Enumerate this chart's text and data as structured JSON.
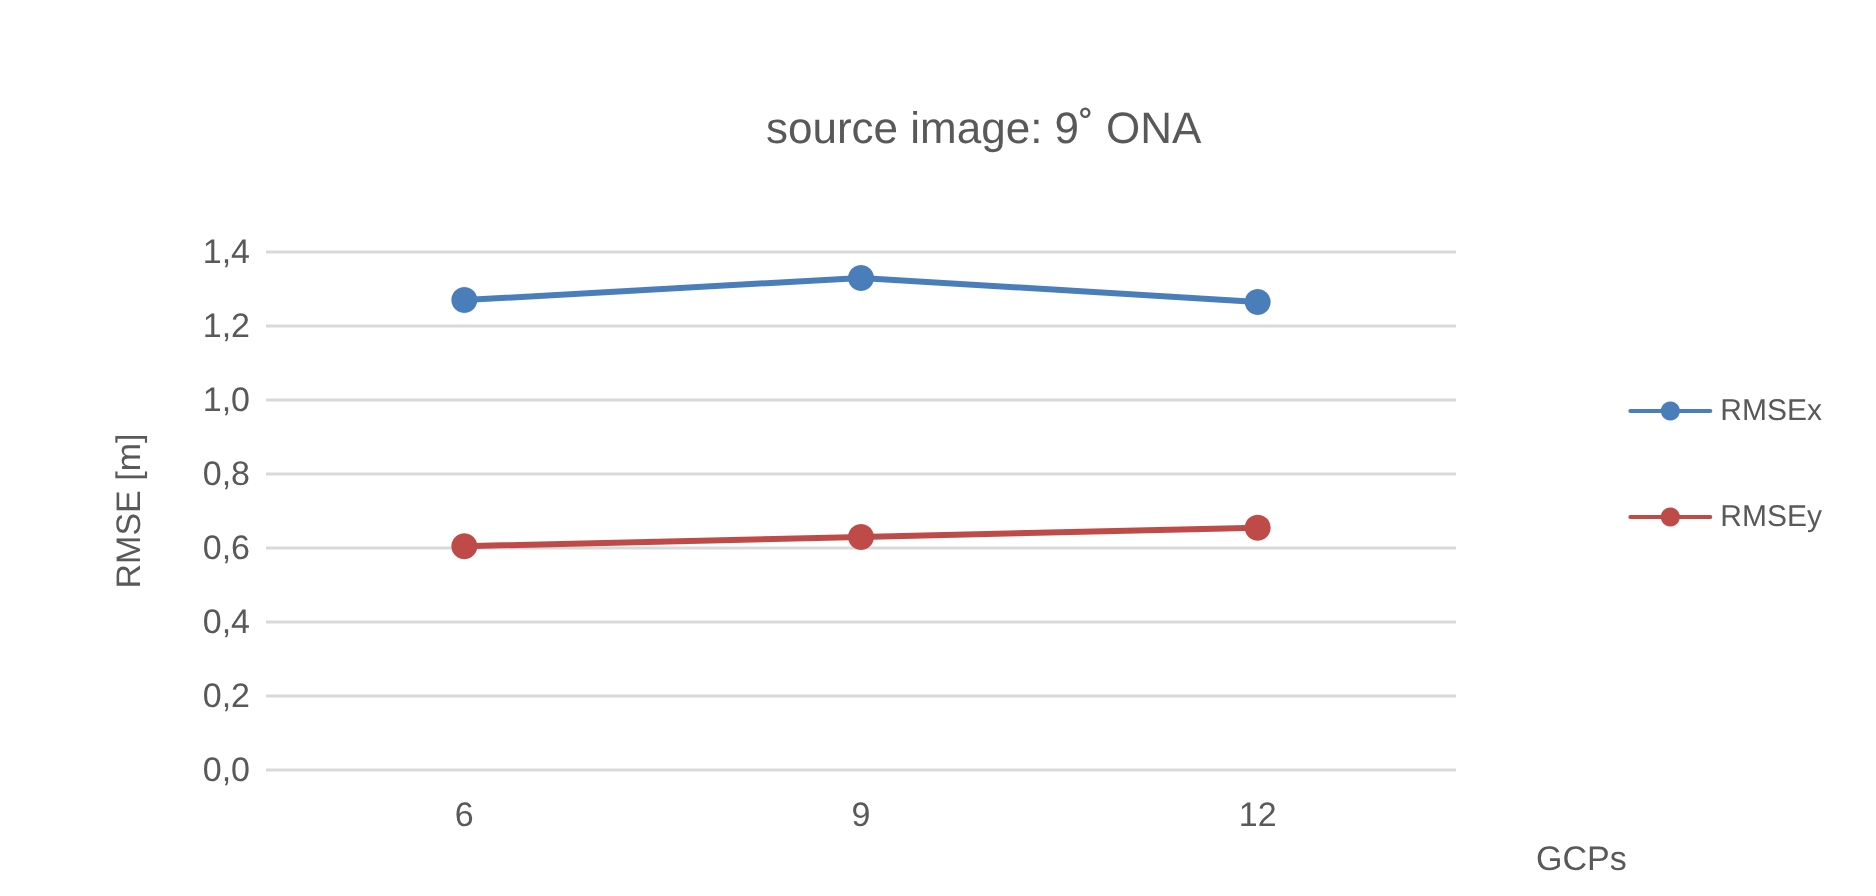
{
  "chart_data": {
    "type": "line",
    "title": "source image: 9˚ ONA",
    "xlabel": "GCPs",
    "ylabel": "RMSE [m]",
    "categories": [
      "6",
      "9",
      "12"
    ],
    "series": [
      {
        "name": "RMSEx",
        "color": "#4a7ebb",
        "values": [
          1.27,
          1.33,
          1.265
        ]
      },
      {
        "name": "RMSEy",
        "color": "#be4b48",
        "values": [
          0.605,
          0.63,
          0.655
        ]
      }
    ],
    "ylim": [
      0,
      1.4
    ],
    "yticks": [
      {
        "value": 0,
        "label": "0,0"
      },
      {
        "value": 0.2,
        "label": "0,2"
      },
      {
        "value": 0.4,
        "label": "0,4"
      },
      {
        "value": 0.6,
        "label": "0,6"
      },
      {
        "value": 0.8,
        "label": "0,8"
      },
      {
        "value": 1.0,
        "label": "1,0"
      },
      {
        "value": 1.2,
        "label": "1,2"
      },
      {
        "value": 1.4,
        "label": "1,4"
      }
    ],
    "grid": "y",
    "legend": "right",
    "marker": "circle",
    "line_style": "solid"
  }
}
